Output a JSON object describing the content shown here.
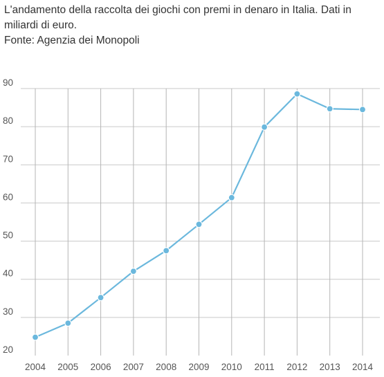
{
  "header": {
    "title": "L'andamento della raccolta dei giochi con premi in denaro in Italia. Dati in miliardi di euro.",
    "source": "Fonte: Agenzia dei Monopoli"
  },
  "chart_data": {
    "type": "line",
    "title": "L'andamento della raccolta dei giochi con premi in denaro in Italia. Dati in miliardi di euro.",
    "xlabel": "",
    "ylabel": "",
    "categories": [
      "2004",
      "2005",
      "2006",
      "2007",
      "2008",
      "2009",
      "2010",
      "2011",
      "2012",
      "2013",
      "2014"
    ],
    "series": [
      {
        "values": [
          24.8,
          28.5,
          35.2,
          42.1,
          47.5,
          54.4,
          61.4,
          79.9,
          88.6,
          84.7,
          84.5
        ],
        "color": "#6bb8dd"
      }
    ],
    "ylim": [
      20,
      90
    ],
    "yticks": [
      20,
      30,
      40,
      50,
      60,
      70,
      80,
      90
    ],
    "grid": true,
    "legend": "none"
  }
}
